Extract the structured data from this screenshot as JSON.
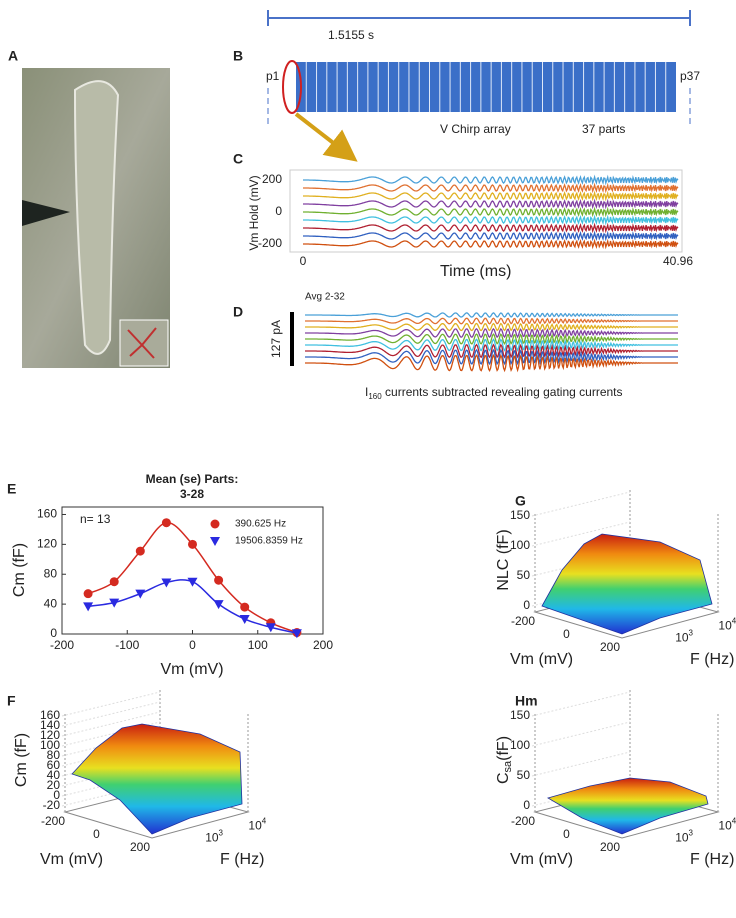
{
  "figure": {
    "A": {
      "label": "A"
    },
    "B": {
      "label": "B",
      "duration": "1.5155 s",
      "start": "p1",
      "end": "p37",
      "array": "V Chirp array",
      "parts": "37 parts"
    },
    "C": {
      "label": "C",
      "ylabel": "Vm Hold (mV)",
      "yticks": [
        200,
        0,
        -200
      ],
      "xlabel": "Time (ms)",
      "xticks": [
        0,
        40.96
      ]
    },
    "D": {
      "label": "D",
      "note": "Avg 2-32",
      "scale": "127 pA",
      "caption": {
        "main": "I",
        "sub": "160",
        "rest": " currents subtracted revealing gating currents"
      }
    },
    "G": {
      "label": "G",
      "zlabel": {
        "main": "NLC (fF)"
      },
      "zticks": [
        0,
        50,
        100,
        150
      ],
      "vmticks": [
        -200,
        0,
        200
      ],
      "fticks": [
        {
          "base": "10",
          "exp": "3"
        },
        {
          "base": "10",
          "exp": "4"
        }
      ],
      "xlabel": "Vm (mV)",
      "ylabel": "F (Hz)"
    },
    "F": {
      "label": "F",
      "zlabel": {
        "main": "Cm (fF)"
      },
      "zticks": [
        -20,
        0,
        20,
        40,
        60,
        80,
        100,
        120,
        140,
        160
      ],
      "vmticks": [
        -200,
        0,
        200
      ],
      "fticks": [
        {
          "base": "10",
          "exp": "3"
        },
        {
          "base": "10",
          "exp": "4"
        }
      ],
      "xlabel": "Vm (mV)",
      "ylabel": "F (Hz)"
    },
    "Hm": {
      "label": "Hm",
      "zlabel": {
        "main": "C",
        "sub": "sa",
        "rest": "(fF)"
      },
      "zticks": [
        0,
        50,
        100,
        150
      ],
      "vmticks": [
        -200,
        0,
        200
      ],
      "fticks": [
        {
          "base": "10",
          "exp": "3"
        },
        {
          "base": "10",
          "exp": "4"
        }
      ],
      "xlabel": "Vm (mV)",
      "ylabel": "F (Hz)"
    }
  },
  "chart_data": {
    "type": "line",
    "label": "E",
    "title": "Mean (se) Parts:",
    "subtitle": "3-28",
    "annotation": "n= 13",
    "xlabel": "Vm (mV)",
    "ylabel": "Cm (fF)",
    "x": [
      -160,
      -120,
      -80,
      -40,
      0,
      40,
      80,
      120,
      160
    ],
    "series": [
      {
        "name": "390.625 Hz",
        "color": "#d42a20",
        "marker": "circle",
        "values": [
          54,
          70,
          111,
          149,
          120,
          72,
          36,
          15,
          2
        ]
      },
      {
        "name": "19506.8359 Hz",
        "color": "#2a2ae0",
        "marker": "triangle",
        "values": [
          37,
          42,
          54,
          69,
          70,
          40,
          20,
          9,
          1
        ]
      }
    ],
    "xlim": [
      -200,
      200
    ],
    "xticks": [
      -200,
      -100,
      0,
      100,
      200
    ],
    "ylim": [
      0,
      170
    ],
    "yticks": [
      0,
      40,
      80,
      120,
      160
    ],
    "legend": "upper right"
  }
}
